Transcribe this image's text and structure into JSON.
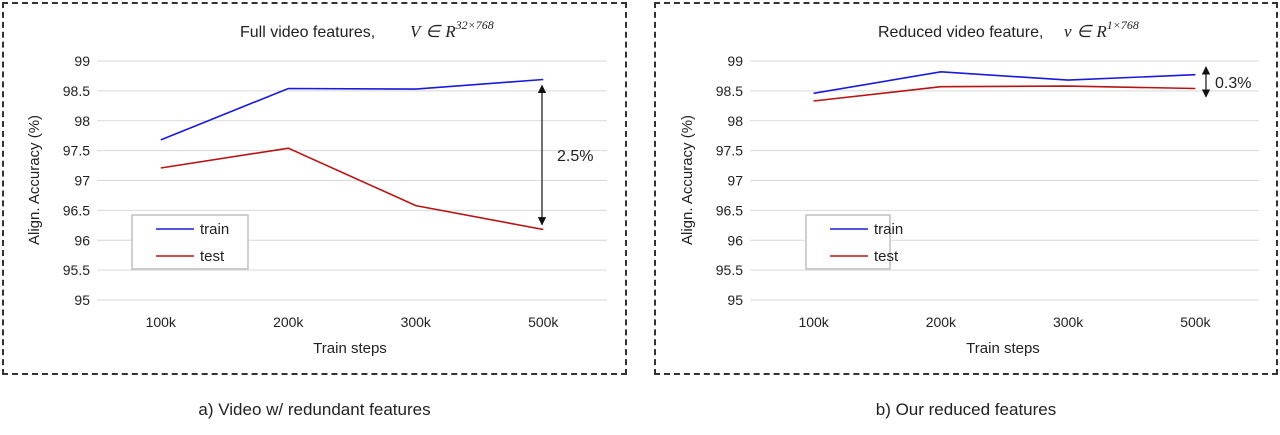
{
  "captions": {
    "a": "a) Video w/ redundant features",
    "b": "b) Our reduced features"
  },
  "chart_data": [
    {
      "type": "line",
      "title": "Full video features,",
      "title_math": {
        "symbol": "V",
        "set": "R",
        "superscript": "32×768"
      },
      "xlabel": "Train steps",
      "ylabel": "Align. Accuracy (%)",
      "categories": [
        "100k",
        "200k",
        "300k",
        "500k"
      ],
      "ylim": [
        95,
        99
      ],
      "yticks": [
        95,
        95.5,
        96,
        96.5,
        97,
        97.5,
        98,
        98.5,
        99
      ],
      "grid": true,
      "legend_position": "lower-left",
      "series": [
        {
          "name": "train",
          "color": "#1a1adc",
          "values": [
            97.68,
            98.54,
            98.53,
            98.69
          ]
        },
        {
          "name": "test",
          "color": "#b81414",
          "values": [
            97.21,
            97.54,
            96.58,
            96.18
          ]
        }
      ],
      "annotation": {
        "text": "2.5%",
        "category": "500k",
        "from": 98.59,
        "to": 96.26
      }
    },
    {
      "type": "line",
      "title": "Reduced video feature,",
      "title_math": {
        "symbol": "v",
        "set": "R",
        "superscript": "1×768"
      },
      "xlabel": "Train steps",
      "ylabel": "Align. Accuracy (%)",
      "categories": [
        "100k",
        "200k",
        "300k",
        "500k"
      ],
      "ylim": [
        95,
        99
      ],
      "yticks": [
        95,
        95.5,
        96,
        96.5,
        97,
        97.5,
        98,
        98.5,
        99
      ],
      "grid": true,
      "legend_position": "lower-left",
      "series": [
        {
          "name": "train",
          "color": "#1a1adc",
          "values": [
            98.46,
            98.82,
            98.68,
            98.77
          ]
        },
        {
          "name": "test",
          "color": "#b81414",
          "values": [
            98.33,
            98.57,
            98.58,
            98.54
          ]
        }
      ],
      "annotation": {
        "text": "0.3%",
        "category": "500k",
        "from": 98.9,
        "to": 98.4
      }
    }
  ]
}
